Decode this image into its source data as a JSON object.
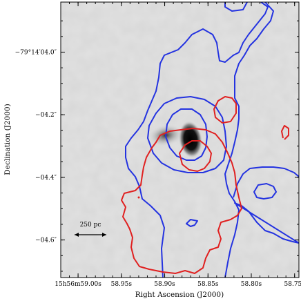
{
  "chart_data": {
    "type": "contour",
    "xlabel": "Right Ascension (J2000)",
    "ylabel": "Declination (J2000)",
    "x_ticks": [
      {
        "ra_s": 59.0,
        "label": "15h56m59.00s"
      },
      {
        "ra_s": 58.95,
        "label": "58.95s"
      },
      {
        "ra_s": 58.9,
        "label": "58.90s"
      },
      {
        "ra_s": 58.85,
        "label": "58.85s"
      },
      {
        "ra_s": 58.8,
        "label": "58.80s"
      },
      {
        "ra_s": 58.75,
        "label": "58.75s"
      }
    ],
    "y_ticks": [
      {
        "dec_offset_arcsec": 0.0,
        "label": "−79°14′04.0″"
      },
      {
        "dec_offset_arcsec": -0.2,
        "label": "−04.2″"
      },
      {
        "dec_offset_arcsec": -0.4,
        "label": "−04.4″"
      },
      {
        "dec_offset_arcsec": -0.6,
        "label": "−04.6″"
      }
    ],
    "xlim_ra_s": [
      59.02,
      58.745
    ],
    "ylim_dec_offset_arcsec": [
      -0.72,
      0.16
    ],
    "background": "grayscale image",
    "contour_colors": {
      "blue": "#2433e0",
      "red": "#e02020"
    },
    "scale_bar": {
      "label": "250 pc"
    },
    "grid": false
  }
}
